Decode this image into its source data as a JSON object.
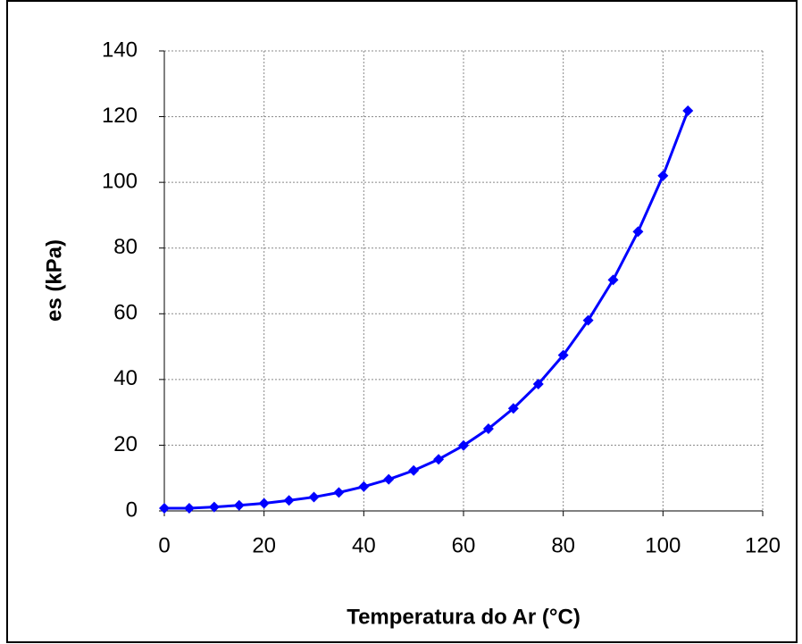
{
  "chart_data": {
    "type": "line",
    "xlabel": "Temperatura do Ar (°C)",
    "ylabel": "es (kPa)",
    "x": [
      0,
      5,
      10,
      15,
      20,
      25,
      30,
      35,
      40,
      45,
      50,
      55,
      60,
      65,
      70,
      75,
      80,
      85,
      90,
      95,
      100,
      105
    ],
    "values": [
      0.8,
      0.8,
      1.2,
      1.7,
      2.3,
      3.2,
      4.2,
      5.6,
      7.4,
      9.6,
      12.3,
      15.7,
      19.9,
      25.0,
      31.2,
      38.6,
      47.4,
      58.0,
      70.3,
      85.0,
      102.0,
      121.8
    ],
    "color": "#0000ff",
    "xlim": [
      0,
      120
    ],
    "xticks": [
      0,
      20,
      40,
      60,
      80,
      100,
      120
    ],
    "ylim": [
      0,
      140
    ],
    "yticks": [
      0,
      20,
      40,
      60,
      80,
      100,
      120,
      140
    ],
    "grid": true
  }
}
